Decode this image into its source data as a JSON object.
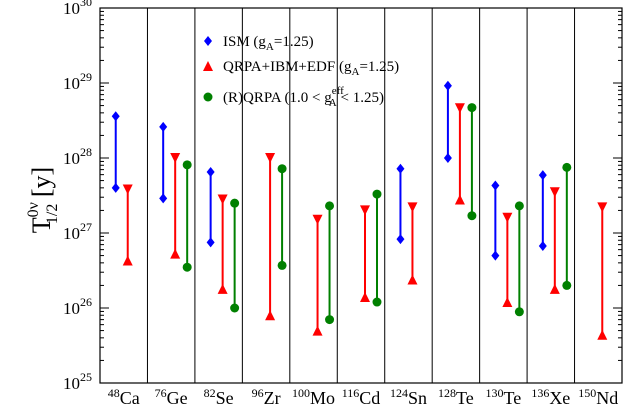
{
  "chart_data": {
    "type": "range",
    "ylabel": {
      "base": "T",
      "sup": "0ν",
      "sub": "1/2",
      "unit": "[y]"
    },
    "y_scale": "log",
    "ylim": [
      1e+25,
      1e+30
    ],
    "y_ticks": [
      {
        "value": 1e+25,
        "base": "10",
        "exp": "25"
      },
      {
        "value": 1e+26,
        "base": "10",
        "exp": "26"
      },
      {
        "value": 1e+27,
        "base": "10",
        "exp": "27"
      },
      {
        "value": 1e+28,
        "base": "10",
        "exp": "28"
      },
      {
        "value": 1e+29,
        "base": "10",
        "exp": "29"
      },
      {
        "value": 1e+30,
        "base": "10",
        "exp": "30"
      }
    ],
    "categories": [
      {
        "mass": "48",
        "symbol": "Ca"
      },
      {
        "mass": "76",
        "symbol": "Ge"
      },
      {
        "mass": "82",
        "symbol": "Se"
      },
      {
        "mass": "96",
        "symbol": "Zr"
      },
      {
        "mass": "100",
        "symbol": "Mo"
      },
      {
        "mass": "116",
        "symbol": "Cd"
      },
      {
        "mass": "124",
        "symbol": "Sn"
      },
      {
        "mass": "128",
        "symbol": "Te"
      },
      {
        "mass": "130",
        "symbol": "Te"
      },
      {
        "mass": "136",
        "symbol": "Xe"
      },
      {
        "mass": "150",
        "symbol": "Nd"
      }
    ],
    "series": [
      {
        "legend": {
          "main": "ISM (g",
          "sub": "A",
          "tail": "=1.25)"
        },
        "color": "#0000ff",
        "marker": "diamond",
        "ranges": [
          [
            4e+27,
            3.6e+28
          ],
          [
            2.9e+27,
            2.6e+28
          ],
          [
            7.5e+26,
            6.5e+27
          ],
          null,
          null,
          null,
          [
            8.3e+26,
            7.2e+27
          ],
          [
            1e+28,
            9.2e+28
          ],
          [
            5e+26,
            4.3e+27
          ],
          [
            6.7e+26,
            5.9e+27
          ],
          null
        ]
      },
      {
        "legend": {
          "main": "QRPA+IBM+EDF (g",
          "sub": "A",
          "tail": "=1.25)"
        },
        "color": "#ff0000",
        "marker": "triangle",
        "ranges": [
          [
            4.3e+26,
            3.8e+27
          ],
          [
            5.3e+26,
            1e+28
          ],
          [
            1.8e+26,
            2.8e+27
          ],
          [
            8e+25,
            1e+28
          ],
          [
            5e+25,
            1.5e+27
          ],
          [
            1.4e+26,
            2e+27
          ],
          [
            2.4e+26,
            2.2e+27
          ],
          [
            2.8e+27,
            4.6e+28
          ],
          [
            1.2e+26,
            1.6e+27
          ],
          [
            1.8e+26,
            3.5e+27
          ],
          [
            4.4e+25,
            2.2e+27
          ]
        ]
      },
      {
        "legend": {
          "main": "(R)QRPA (1.0 < g",
          "sup": "eff",
          "sub": "A",
          "tail": " < 1.25)"
        },
        "color": "#008000",
        "marker": "circle",
        "ranges": [
          null,
          [
            3.5e+26,
            8.1e+27
          ],
          [
            1e+26,
            2.5e+27
          ],
          [
            3.7e+26,
            7.2e+27
          ],
          [
            7e+25,
            2.3e+27
          ],
          [
            1.2e+26,
            3.3e+27
          ],
          null,
          [
            1.7e+27,
            4.7e+28
          ],
          [
            8.9e+25,
            2.3e+27
          ],
          [
            2e+26,
            7.5e+27
          ],
          null
        ]
      }
    ]
  }
}
